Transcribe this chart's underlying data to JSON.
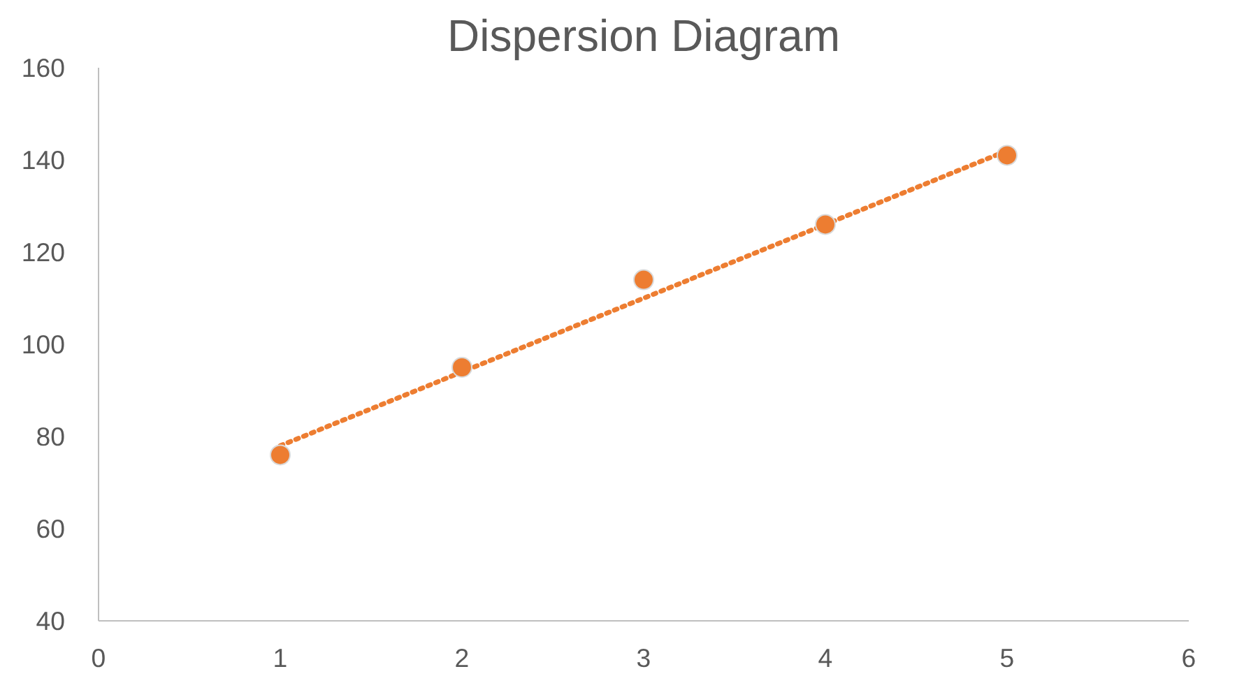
{
  "chart_data": {
    "type": "scatter",
    "title": "Dispersion Diagram",
    "x": [
      1,
      2,
      3,
      4,
      5
    ],
    "series": [
      {
        "color": "#ed7d31",
        "marker": "circle",
        "values": [
          76,
          95,
          114,
          126,
          141
        ]
      },
      {
        "type": "line",
        "color": "#ed7d31",
        "line_style": "dotted",
        "marker": "none",
        "x": [
          1,
          5
        ],
        "values": [
          78,
          142
        ]
      }
    ],
    "xlim": [
      0,
      6
    ],
    "xticks": [
      0,
      1,
      2,
      3,
      4,
      5,
      6
    ],
    "ylim": [
      40,
      160
    ],
    "yticks": [
      40,
      60,
      80,
      100,
      120,
      140,
      160
    ],
    "grid": false
  }
}
